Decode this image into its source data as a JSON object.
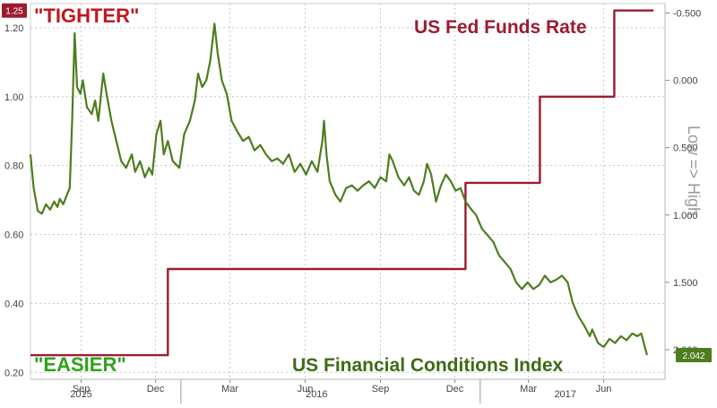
{
  "chart_data": {
    "type": "line",
    "annotations": {
      "tighter": "\"TIGHTER\"",
      "easier": "\"EASIER\"",
      "fed_label": "US Fed Funds Rate",
      "fci_label": "US Financial Conditions Index",
      "right_axis_label": "Low => High"
    },
    "x_ticks": [
      {
        "label": "Sep",
        "date": "2015-09-01"
      },
      {
        "label": "Dec",
        "date": "2015-12-01"
      },
      {
        "label": "Mar",
        "date": "2016-03-01"
      },
      {
        "label": "Jun",
        "date": "2016-06-01"
      },
      {
        "label": "Sep",
        "date": "2016-09-01"
      },
      {
        "label": "Dec",
        "date": "2016-12-01"
      },
      {
        "label": "Mar",
        "date": "2017-03-01"
      },
      {
        "label": "Jun",
        "date": "2017-06-01"
      }
    ],
    "x_years": [
      {
        "label": "2015",
        "date": "2015-09-01"
      },
      {
        "label": "2016",
        "date": "2016-06-15"
      },
      {
        "label": "2017",
        "date": "2017-04-15"
      }
    ],
    "x_range": [
      "2015-07-01",
      "2017-08-15"
    ],
    "y_left": {
      "ticks": [
        "1.20",
        "1.00",
        "0.80",
        "0.60",
        "0.40",
        "0.20"
      ],
      "range": [
        0.18,
        1.27
      ]
    },
    "y_right": {
      "ticks": [
        "-0.500",
        "0.000",
        "0.500",
        "1.000",
        "1.500",
        "2.000"
      ],
      "range": [
        -0.57,
        2.22
      ],
      "inverted": true
    },
    "last_value_left": "1.25",
    "last_value_right": "2.042",
    "grid": true,
    "colors": {
      "fed": "#9b1c31",
      "fci": "#4e7d1e",
      "tighter": "#c0181f",
      "easier": "#2fa31b",
      "fci_label": "#3e6b15",
      "axis_text": "#444444"
    },
    "series": [
      {
        "name": "US Fed Funds Rate",
        "axis": "left",
        "step": true,
        "points": [
          [
            "2015-07-01",
            0.25
          ],
          [
            "2015-12-16",
            0.25
          ],
          [
            "2015-12-16",
            0.5
          ],
          [
            "2016-12-14",
            0.5
          ],
          [
            "2016-12-14",
            0.75
          ],
          [
            "2017-03-15",
            0.75
          ],
          [
            "2017-03-15",
            1.0
          ],
          [
            "2017-06-14",
            1.0
          ],
          [
            "2017-06-14",
            1.25
          ],
          [
            "2017-08-01",
            1.25
          ]
        ]
      },
      {
        "name": "US Financial Conditions Index",
        "axis": "right",
        "points": [
          [
            "2015-07-01",
            0.55
          ],
          [
            "2015-07-05",
            0.8
          ],
          [
            "2015-07-10",
            0.97
          ],
          [
            "2015-07-15",
            0.99
          ],
          [
            "2015-07-20",
            0.92
          ],
          [
            "2015-07-25",
            0.96
          ],
          [
            "2015-07-30",
            0.9
          ],
          [
            "2015-08-03",
            0.94
          ],
          [
            "2015-08-06",
            0.88
          ],
          [
            "2015-08-10",
            0.92
          ],
          [
            "2015-08-14",
            0.86
          ],
          [
            "2015-08-18",
            0.8
          ],
          [
            "2015-08-21",
            0.3
          ],
          [
            "2015-08-24",
            -0.35
          ],
          [
            "2015-08-27",
            0.05
          ],
          [
            "2015-08-31",
            0.1
          ],
          [
            "2015-09-03",
            0.0
          ],
          [
            "2015-09-08",
            0.2
          ],
          [
            "2015-09-14",
            0.25
          ],
          [
            "2015-09-18",
            0.15
          ],
          [
            "2015-09-22",
            0.3
          ],
          [
            "2015-09-28",
            -0.05
          ],
          [
            "2015-10-02",
            0.1
          ],
          [
            "2015-10-08",
            0.3
          ],
          [
            "2015-10-14",
            0.45
          ],
          [
            "2015-10-20",
            0.6
          ],
          [
            "2015-10-26",
            0.65
          ],
          [
            "2015-11-02",
            0.55
          ],
          [
            "2015-11-06",
            0.68
          ],
          [
            "2015-11-12",
            0.6
          ],
          [
            "2015-11-18",
            0.72
          ],
          [
            "2015-11-23",
            0.65
          ],
          [
            "2015-11-27",
            0.7
          ],
          [
            "2015-12-02",
            0.4
          ],
          [
            "2015-12-07",
            0.3
          ],
          [
            "2015-12-11",
            0.55
          ],
          [
            "2015-12-16",
            0.45
          ],
          [
            "2015-12-22",
            0.6
          ],
          [
            "2015-12-30",
            0.65
          ],
          [
            "2016-01-05",
            0.4
          ],
          [
            "2016-01-12",
            0.3
          ],
          [
            "2016-01-18",
            0.15
          ],
          [
            "2016-01-22",
            -0.05
          ],
          [
            "2016-01-27",
            0.05
          ],
          [
            "2016-02-01",
            0.0
          ],
          [
            "2016-02-06",
            -0.15
          ],
          [
            "2016-02-11",
            -0.42
          ],
          [
            "2016-02-15",
            -0.2
          ],
          [
            "2016-02-20",
            0.0
          ],
          [
            "2016-02-26",
            0.1
          ],
          [
            "2016-03-03",
            0.3
          ],
          [
            "2016-03-10",
            0.38
          ],
          [
            "2016-03-17",
            0.45
          ],
          [
            "2016-03-24",
            0.42
          ],
          [
            "2016-03-31",
            0.52
          ],
          [
            "2016-04-07",
            0.48
          ],
          [
            "2016-04-14",
            0.55
          ],
          [
            "2016-04-21",
            0.6
          ],
          [
            "2016-04-28",
            0.58
          ],
          [
            "2016-05-05",
            0.62
          ],
          [
            "2016-05-12",
            0.55
          ],
          [
            "2016-05-19",
            0.68
          ],
          [
            "2016-05-26",
            0.62
          ],
          [
            "2016-06-02",
            0.7
          ],
          [
            "2016-06-09",
            0.6
          ],
          [
            "2016-06-16",
            0.68
          ],
          [
            "2016-06-22",
            0.45
          ],
          [
            "2016-06-24",
            0.3
          ],
          [
            "2016-06-27",
            0.55
          ],
          [
            "2016-07-01",
            0.75
          ],
          [
            "2016-07-08",
            0.85
          ],
          [
            "2016-07-14",
            0.9
          ],
          [
            "2016-07-21",
            0.8
          ],
          [
            "2016-07-28",
            0.78
          ],
          [
            "2016-08-04",
            0.82
          ],
          [
            "2016-08-11",
            0.78
          ],
          [
            "2016-08-18",
            0.75
          ],
          [
            "2016-08-25",
            0.8
          ],
          [
            "2016-09-01",
            0.72
          ],
          [
            "2016-09-08",
            0.75
          ],
          [
            "2016-09-12",
            0.55
          ],
          [
            "2016-09-16",
            0.6
          ],
          [
            "2016-09-23",
            0.72
          ],
          [
            "2016-09-30",
            0.78
          ],
          [
            "2016-10-06",
            0.72
          ],
          [
            "2016-10-12",
            0.82
          ],
          [
            "2016-10-18",
            0.85
          ],
          [
            "2016-10-24",
            0.75
          ],
          [
            "2016-10-28",
            0.62
          ],
          [
            "2016-11-02",
            0.7
          ],
          [
            "2016-11-08",
            0.9
          ],
          [
            "2016-11-14",
            0.78
          ],
          [
            "2016-11-20",
            0.7
          ],
          [
            "2016-11-26",
            0.75
          ],
          [
            "2016-12-02",
            0.82
          ],
          [
            "2016-12-08",
            0.8
          ],
          [
            "2016-12-14",
            0.9
          ],
          [
            "2016-12-20",
            0.95
          ],
          [
            "2016-12-27",
            1.0
          ],
          [
            "2017-01-03",
            1.1
          ],
          [
            "2017-01-10",
            1.15
          ],
          [
            "2017-01-17",
            1.2
          ],
          [
            "2017-01-24",
            1.3
          ],
          [
            "2017-01-31",
            1.35
          ],
          [
            "2017-02-07",
            1.4
          ],
          [
            "2017-02-14",
            1.5
          ],
          [
            "2017-02-21",
            1.55
          ],
          [
            "2017-02-28",
            1.5
          ],
          [
            "2017-03-07",
            1.55
          ],
          [
            "2017-03-14",
            1.52
          ],
          [
            "2017-03-21",
            1.45
          ],
          [
            "2017-03-28",
            1.5
          ],
          [
            "2017-04-04",
            1.48
          ],
          [
            "2017-04-11",
            1.45
          ],
          [
            "2017-04-18",
            1.5
          ],
          [
            "2017-04-24",
            1.65
          ],
          [
            "2017-05-01",
            1.75
          ],
          [
            "2017-05-08",
            1.82
          ],
          [
            "2017-05-15",
            1.9
          ],
          [
            "2017-05-18",
            1.85
          ],
          [
            "2017-05-25",
            1.95
          ],
          [
            "2017-06-01",
            1.98
          ],
          [
            "2017-06-08",
            1.92
          ],
          [
            "2017-06-15",
            1.95
          ],
          [
            "2017-06-22",
            1.9
          ],
          [
            "2017-06-29",
            1.93
          ],
          [
            "2017-07-06",
            1.88
          ],
          [
            "2017-07-12",
            1.9
          ],
          [
            "2017-07-17",
            1.88
          ],
          [
            "2017-07-24",
            2.04
          ]
        ]
      }
    ]
  }
}
